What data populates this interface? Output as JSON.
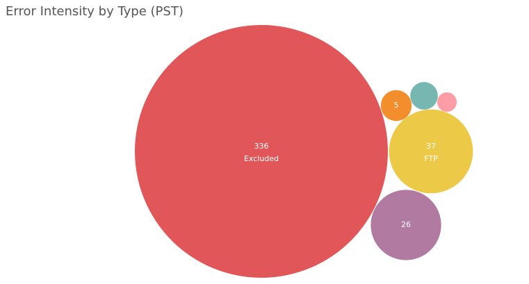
{
  "chart_data": {
    "type": "bubble",
    "title": "Error Intensity by Type (PST)",
    "categories": [
      "Excluded",
      "FTP",
      null,
      null,
      null,
      null
    ],
    "values": [
      336,
      37,
      26,
      5,
      4,
      2
    ],
    "colors": [
      "#e15759",
      "#edc948",
      "#b07aa1",
      "#f28e2b",
      "#76b7b2",
      "#ff9da7"
    ]
  }
}
